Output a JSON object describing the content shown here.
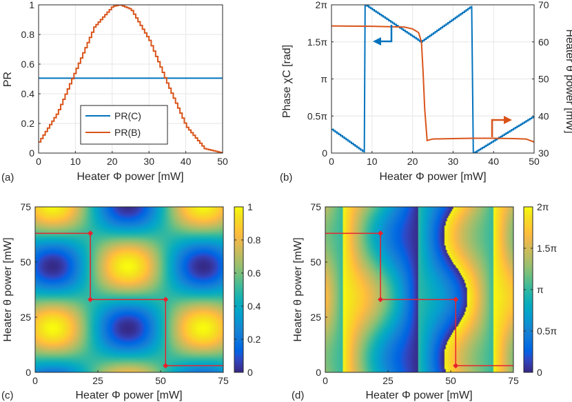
{
  "colors": {
    "blue": "#0072bd",
    "orange": "#d95319",
    "red": "#e8222d",
    "axis": "#262626",
    "grid": "#e6e6e6"
  },
  "chart_data": [
    {
      "panel": "(a)",
      "type": "line",
      "xlabel": "Heater Φ power [mW]",
      "ylabel": "PR",
      "xlim": [
        0,
        50
      ],
      "ylim": [
        0,
        1
      ],
      "xticks": [
        0,
        10,
        20,
        30,
        40,
        50
      ],
      "xtick_labels": [
        "0",
        "10",
        "20",
        "30",
        "40",
        "50"
      ],
      "yticks": [
        0,
        0.2,
        0.4,
        0.6,
        0.8,
        1
      ],
      "ytick_labels": [
        "0",
        "0.2",
        "0.4",
        "0.6",
        "0.8",
        "1"
      ],
      "grid": true,
      "legend": {
        "placement": "lower-left",
        "entries": [
          "PR(C)",
          "PR(B)"
        ]
      },
      "series": [
        {
          "name": "PR(C)",
          "color": "blue",
          "x": [
            0,
            50
          ],
          "y": [
            0.505,
            0.505
          ]
        },
        {
          "name": "PR(B)",
          "color": "orange",
          "style": "staircase",
          "x": [
            0,
            5,
            10,
            15,
            20,
            22,
            25,
            30,
            35,
            40,
            45,
            50
          ],
          "y": [
            0.075,
            0.27,
            0.56,
            0.85,
            0.99,
            1.0,
            0.97,
            0.76,
            0.46,
            0.18,
            0.03,
            0.0
          ]
        }
      ]
    },
    {
      "panel": "(b)",
      "type": "line",
      "xlabel": "Heater Φ power [mW]",
      "ylabel_left": "Phase χC [rad]",
      "ylabel_right": "Heater θ power [mW]",
      "xlim": [
        0,
        50
      ],
      "ylim_left_pi": [
        0,
        2
      ],
      "ylim_right": [
        30,
        70
      ],
      "xticks": [
        0,
        10,
        20,
        30,
        40,
        50
      ],
      "xtick_labels": [
        "0",
        "10",
        "20",
        "30",
        "40",
        "50"
      ],
      "yticks_left_pi": [
        0,
        0.5,
        1,
        1.5,
        2
      ],
      "ytick_labels_left": [
        "0",
        "0.5π",
        "π",
        "1.5π",
        "2π"
      ],
      "yticks_right": [
        30,
        40,
        50,
        60,
        70
      ],
      "ytick_labels_right": [
        "30",
        "40",
        "50",
        "60",
        "70"
      ],
      "grid": true,
      "series": [
        {
          "name": "Phase χC",
          "color": "blue",
          "axis": "left",
          "style": "staircase",
          "x_pi_pairs": [
            [
              0,
              0.32
            ],
            [
              8.3,
              0.0
            ],
            [
              8.3,
              2.0
            ],
            [
              22.0,
              1.5
            ],
            [
              35.0,
              2.0
            ],
            [
              35.0,
              0.0
            ],
            [
              50,
              0.5
            ]
          ]
        },
        {
          "name": "Heater θ power",
          "color": "orange",
          "axis": "right",
          "x": [
            0,
            10,
            18,
            20,
            21.5,
            22.2,
            22.6,
            23.0,
            23.6,
            25,
            30,
            35,
            40,
            45,
            48,
            50
          ],
          "y": [
            64.3,
            64.2,
            64.0,
            63.5,
            62.5,
            60,
            52,
            42,
            33.4,
            33.8,
            33.9,
            34.0,
            34.0,
            33.9,
            33.8,
            33.0
          ]
        }
      ],
      "annotations": [
        {
          "direction": "left",
          "points_to": "left axis",
          "color": "blue"
        },
        {
          "direction": "right",
          "points_to": "right axis",
          "color": "orange"
        }
      ]
    },
    {
      "panel": "(c)",
      "type": "heatmap",
      "xlabel": "Heater Φ power [mW]",
      "ylabel": "Heater θ power [mW]",
      "xlim": [
        0,
        75
      ],
      "ylim": [
        0,
        75
      ],
      "xticks": [
        0,
        25,
        50,
        75
      ],
      "xtick_labels": [
        "0",
        "25",
        "50",
        "75"
      ],
      "yticks": [
        0,
        25,
        50,
        75
      ],
      "ytick_labels": [
        "0",
        "25",
        "50",
        "75"
      ],
      "colorbar": {
        "range": [
          0,
          1
        ],
        "ticks": [
          0,
          0.2,
          0.4,
          0.6,
          0.8,
          1
        ],
        "tick_labels": [
          "0",
          "0.2",
          "0.4",
          "0.6",
          "0.8",
          "1"
        ]
      },
      "maxima": [
        [
          7,
          20
        ],
        [
          37,
          48
        ],
        [
          67,
          20
        ]
      ],
      "minima": [
        [
          37,
          18
        ],
        [
          7,
          48
        ],
        [
          67,
          48
        ]
      ],
      "path": {
        "color": "red",
        "points": [
          [
            0,
            63
          ],
          [
            22,
            63
          ],
          [
            22,
            33
          ],
          [
            52,
            33
          ],
          [
            52,
            3
          ],
          [
            75,
            3
          ]
        ],
        "markers": [
          [
            22,
            63
          ],
          [
            22,
            33
          ],
          [
            52,
            33
          ],
          [
            52,
            3
          ]
        ]
      }
    },
    {
      "panel": "(d)",
      "type": "heatmap",
      "xlabel": "Heater Φ power [mW]",
      "ylabel": "Heater θ power [mW]",
      "xlim": [
        0,
        75
      ],
      "ylim": [
        0,
        75
      ],
      "xticks": [
        0,
        25,
        50,
        75
      ],
      "xtick_labels": [
        "0",
        "25",
        "50",
        "75"
      ],
      "yticks": [
        0,
        25,
        50,
        75
      ],
      "ytick_labels": [
        "0",
        "25",
        "50",
        "75"
      ],
      "colorbar": {
        "range_pi": [
          0,
          2
        ],
        "ticks_pi": [
          0,
          0.5,
          1,
          1.5,
          2
        ],
        "tick_labels": [
          "0",
          "0.5π",
          "π",
          "1.5π",
          "2π"
        ]
      },
      "phase_jumps_x": [
        7,
        37,
        67
      ],
      "path": {
        "color": "red",
        "points": [
          [
            0,
            63
          ],
          [
            22,
            63
          ],
          [
            22,
            33
          ],
          [
            52,
            33
          ],
          [
            52,
            3
          ],
          [
            75,
            3
          ]
        ],
        "markers": [
          [
            22,
            63
          ],
          [
            22,
            33
          ],
          [
            52,
            33
          ],
          [
            52,
            3
          ]
        ]
      }
    }
  ]
}
